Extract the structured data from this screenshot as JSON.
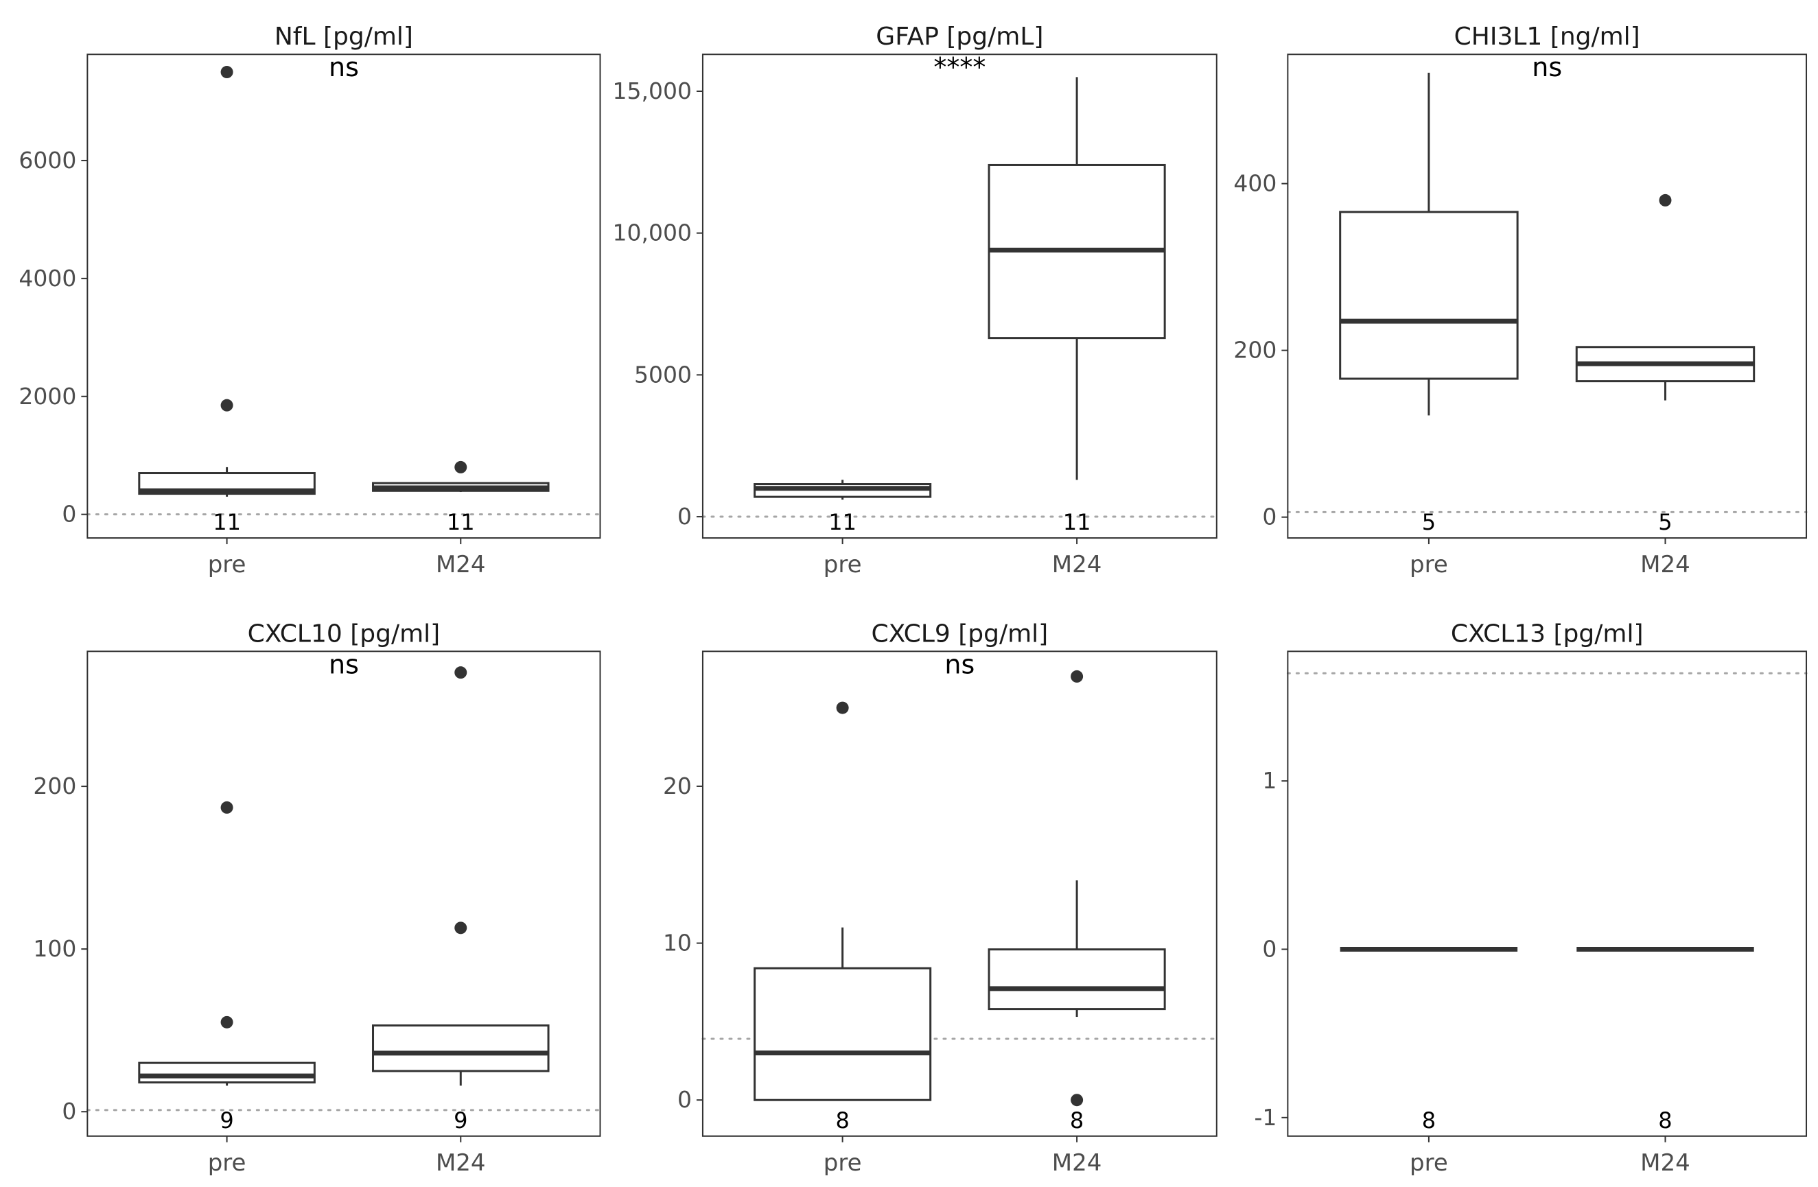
{
  "chart_data": [
    {
      "type": "box",
      "title": "NfL [pg/ml]",
      "categories": [
        "pre",
        "M24"
      ],
      "ylim": [
        -400,
        7800
      ],
      "yticks": [
        0,
        2000,
        4000,
        6000
      ],
      "ytick_labels": [
        "0",
        "2000",
        "4000",
        "6000"
      ],
      "reference_line": 0,
      "significance": "ns",
      "boxes": [
        {
          "category": "pre",
          "min": 300,
          "q1": 350,
          "median": 400,
          "q3": 700,
          "max": 800,
          "outliers": [
            1850,
            7500
          ],
          "n": "11"
        },
        {
          "category": "M24",
          "min": 380,
          "q1": 400,
          "median": 450,
          "q3": 530,
          "max": 540,
          "outliers": [
            800
          ],
          "n": "11"
        }
      ]
    },
    {
      "type": "box",
      "title": "GFAP [pg/mL]",
      "categories": [
        "pre",
        "M24"
      ],
      "ylim": [
        -750,
        16300
      ],
      "yticks": [
        0,
        5000,
        10000,
        15000
      ],
      "ytick_labels": [
        "0",
        "5000",
        "10,000",
        "15,000"
      ],
      "reference_line": 0,
      "significance": "****",
      "boxes": [
        {
          "category": "pre",
          "min": 600,
          "q1": 700,
          "median": 1000,
          "q3": 1150,
          "max": 1300,
          "outliers": [],
          "n": "11"
        },
        {
          "category": "M24",
          "min": 1300,
          "q1": 6300,
          "median": 9400,
          "q3": 12400,
          "max": 15500,
          "outliers": [],
          "n": "11"
        }
      ]
    },
    {
      "type": "box",
      "title": "CHI3L1 [ng/ml]",
      "categories": [
        "pre",
        "M24"
      ],
      "ylim": [
        -25,
        555
      ],
      "yticks": [
        0,
        200,
        400
      ],
      "ytick_labels": [
        "0",
        "200",
        "400"
      ],
      "reference_line": 6,
      "significance": "ns",
      "boxes": [
        {
          "category": "pre",
          "min": 122,
          "q1": 166,
          "median": 235,
          "q3": 366,
          "max": 533,
          "outliers": [],
          "n": "5"
        },
        {
          "category": "M24",
          "min": 140,
          "q1": 163,
          "median": 184,
          "q3": 204,
          "max": 204,
          "outliers": [
            380
          ],
          "n": "5"
        }
      ]
    },
    {
      "type": "box",
      "title": "CXCL10 [pg/ml]",
      "categories": [
        "pre",
        "M24"
      ],
      "ylim": [
        -15,
        283
      ],
      "yticks": [
        0,
        100,
        200
      ],
      "ytick_labels": [
        "0",
        "100",
        "200"
      ],
      "reference_line": 1,
      "significance": "ns",
      "boxes": [
        {
          "category": "pre",
          "min": 16,
          "q1": 18,
          "median": 22,
          "q3": 30,
          "max": 30,
          "outliers": [
            55,
            187
          ],
          "n": "9"
        },
        {
          "category": "M24",
          "min": 16,
          "q1": 25,
          "median": 36,
          "q3": 53,
          "max": 53,
          "outliers": [
            113,
            270
          ],
          "n": "9"
        }
      ]
    },
    {
      "type": "box",
      "title": "CXCL9 [pg/ml]",
      "categories": [
        "pre",
        "M24"
      ],
      "ylim": [
        -2.3,
        28.6
      ],
      "yticks": [
        0,
        10,
        20
      ],
      "ytick_labels": [
        "0",
        "10",
        "20"
      ],
      "reference_line": 3.9,
      "significance": "ns",
      "boxes": [
        {
          "category": "pre",
          "min": 0,
          "q1": 0,
          "median": 3,
          "q3": 8.4,
          "max": 11,
          "outliers": [
            25
          ],
          "n": "8"
        },
        {
          "category": "M24",
          "min": 5.3,
          "q1": 5.8,
          "median": 7.1,
          "q3": 9.6,
          "max": 14,
          "outliers": [
            0,
            27
          ],
          "n": "8"
        }
      ]
    },
    {
      "type": "box",
      "title": "CXCL13 [pg/ml]",
      "categories": [
        "pre",
        "M24"
      ],
      "ylim": [
        -1.11,
        1.77
      ],
      "yticks": [
        -1,
        0,
        1
      ],
      "ytick_labels": [
        "-1",
        "0",
        "1"
      ],
      "reference_line": 1.64,
      "significance": "",
      "boxes": [
        {
          "category": "pre",
          "min": 0,
          "q1": 0,
          "median": 0,
          "q3": 0,
          "max": 0,
          "outliers": [],
          "n": "8"
        },
        {
          "category": "M24",
          "min": 0,
          "q1": 0,
          "median": 0,
          "q3": 0,
          "max": 0,
          "outliers": [],
          "n": "8"
        }
      ]
    }
  ]
}
